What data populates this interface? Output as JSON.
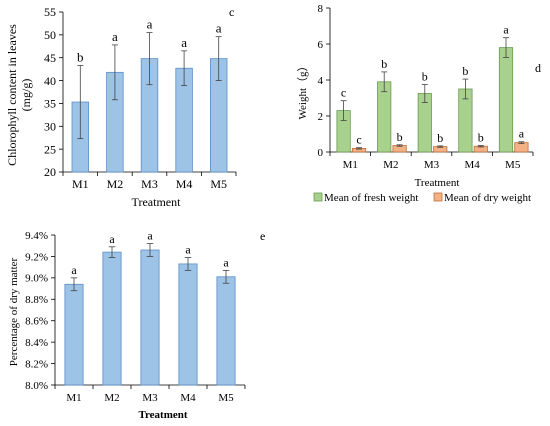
{
  "chart_data": [
    {
      "panel_letter": "c",
      "type": "bar",
      "categories": [
        "M1",
        "M2",
        "M3",
        "M4",
        "M5"
      ],
      "values": [
        35.3,
        41.8,
        44.8,
        42.7,
        44.8
      ],
      "errors": [
        8.0,
        6.0,
        5.7,
        3.8,
        4.8
      ],
      "letters": [
        "b",
        "a",
        "a",
        "a",
        "a"
      ],
      "xlabel": "Treatment",
      "ylabel": "Chlorophyll content in leaves",
      "ylabel_unit": "(mg/g)",
      "ylim": [
        20,
        55
      ],
      "yticks": [
        "20",
        "25",
        "30",
        "35",
        "40",
        "45",
        "50",
        "55"
      ],
      "colors": {
        "bar": "#9dc3e6",
        "bar_edge": "#5b8fc7"
      }
    },
    {
      "panel_letter": "d",
      "type": "bar",
      "categories": [
        "M1",
        "M2",
        "M3",
        "M4",
        "M5"
      ],
      "series": [
        {
          "name": "Mean of fresh weight",
          "values": [
            2.3,
            3.9,
            3.25,
            3.5,
            5.8
          ],
          "errors": [
            0.55,
            0.55,
            0.5,
            0.55,
            0.55
          ],
          "letters": [
            "c",
            "b",
            "b",
            "b",
            "a"
          ]
        },
        {
          "name": "Mean of dry weight",
          "values": [
            0.2,
            0.36,
            0.3,
            0.32,
            0.52
          ],
          "errors": [
            0.04,
            0.04,
            0.04,
            0.04,
            0.05
          ],
          "letters": [
            "c",
            "b",
            "b",
            "b",
            "a"
          ]
        }
      ],
      "xlabel": "Treatment",
      "ylabel": "Weight（g）",
      "ylim": [
        0,
        8
      ],
      "yticks": [
        "0",
        "2",
        "4",
        "6",
        "8"
      ],
      "legend": "bottom",
      "colors": {
        "fresh": "#a9d18e",
        "fresh_edge": "#6a9a4e",
        "dry": "#f4b183",
        "dry_edge": "#c0703c"
      }
    },
    {
      "panel_letter": "e",
      "type": "bar",
      "categories": [
        "M1",
        "M2",
        "M3",
        "M4",
        "M5"
      ],
      "values": [
        8.94,
        9.24,
        9.26,
        9.13,
        9.01
      ],
      "errors": [
        0.06,
        0.05,
        0.06,
        0.06,
        0.06
      ],
      "letters": [
        "a",
        "a",
        "a",
        "a",
        "a"
      ],
      "xlabel": "Treatment",
      "ylabel": "Percentage of dry matter",
      "ylim": [
        8.0,
        9.4
      ],
      "yticks": [
        "8.0%",
        "8.2%",
        "8.4%",
        "8.6%",
        "8.8%",
        "9.0%",
        "9.2%",
        "9.4%"
      ],
      "colors": {
        "bar": "#9dc3e6",
        "bar_edge": "#5b8fc7"
      }
    }
  ]
}
